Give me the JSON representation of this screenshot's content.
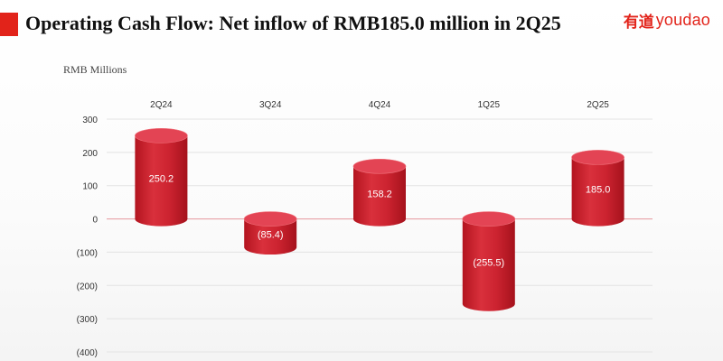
{
  "header": {
    "title": "Operating Cash Flow: Net inflow of RMB185.0 million in 2Q25",
    "logo_cn": "有道",
    "logo_en": "youdao"
  },
  "colors": {
    "accent": "#e2231a",
    "bar_front": "#c81e2b",
    "bar_top": "#e34454",
    "zero_line": "#e8a2a8",
    "grid": "#e3e3e3",
    "text": "#333333"
  },
  "chart_data": {
    "type": "bar",
    "ylabel": "RMB Millions",
    "categories": [
      "2Q24",
      "3Q24",
      "4Q24",
      "1Q25",
      "2Q25"
    ],
    "values": [
      250.2,
      -85.4,
      158.2,
      -255.5,
      185.0
    ],
    "value_labels": [
      "250.2",
      "(85.4)",
      "158.2",
      "(255.5)",
      "185.0"
    ],
    "yticks": [
      300,
      200,
      100,
      0,
      -100,
      -200,
      -300,
      -400
    ],
    "ytick_labels": [
      "300",
      "200",
      "100",
      "0",
      "(100)",
      "(200)",
      "(300)",
      "(400)"
    ],
    "ylim": [
      -400,
      300
    ],
    "grid": true,
    "category_axis_position": "top"
  }
}
